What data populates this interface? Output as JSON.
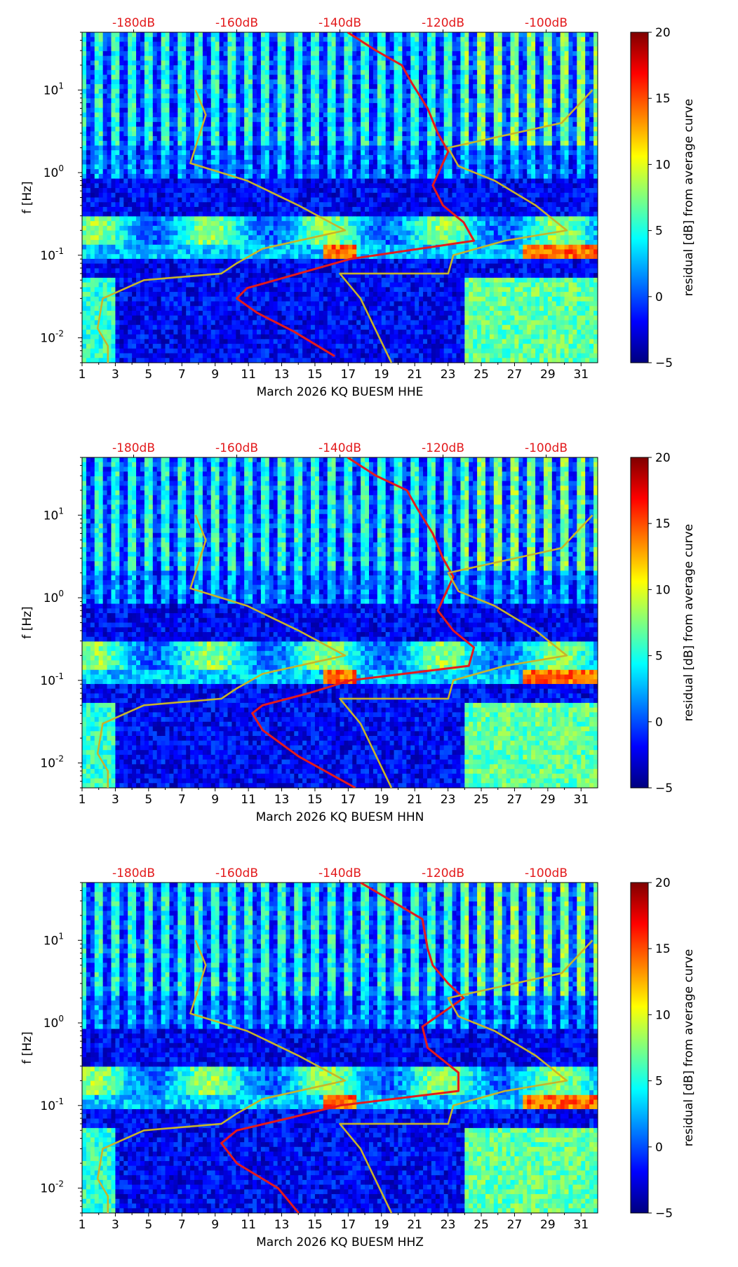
{
  "colors": {
    "colormap": [
      "#00007f",
      "#0000ff",
      "#007fff",
      "#00ffff",
      "#7fff7f",
      "#ffff00",
      "#ff7f00",
      "#ff0000",
      "#7f0000"
    ],
    "red_curve": "#e41a1c",
    "model_curves": "#c8b42a",
    "db_labels": "#e31a1c",
    "axis_text": "#000000"
  },
  "chart_data": [
    {
      "type": "heatmap",
      "title": "",
      "xlabel": "March 2026 KQ BUESM  HHE",
      "ylabel": "f [Hz]",
      "x_ticks": [
        "1",
        "3",
        "5",
        "7",
        "9",
        "11",
        "13",
        "15",
        "17",
        "19",
        "21",
        "23",
        "25",
        "27",
        "29",
        "31"
      ],
      "x_range": [
        1,
        32
      ],
      "y_scale": "log",
      "y_range_hz": [
        0.005,
        50
      ],
      "y_tick_values": [
        0.01,
        0.1,
        1,
        10
      ],
      "top_axis_labels": [
        "-180dB",
        "-160dB",
        "-140dB",
        "-120dB",
        "-100dB"
      ],
      "top_axis_db": [
        -180,
        -160,
        -140,
        -120,
        -100
      ],
      "top_axis_range_db": [
        -190,
        -90
      ],
      "colorbar": {
        "label": "residual [dB] from average curve",
        "ticks": [
          "−5",
          "0",
          "5",
          "10",
          "15",
          "20"
        ],
        "range": [
          -5,
          20
        ]
      },
      "series": [
        {
          "kind": "average_psd",
          "color": "red",
          "points": [
            [
              -138.5,
              50
            ],
            [
              -133,
              30
            ],
            [
              -128,
              20
            ],
            [
              -126,
              12
            ],
            [
              -123,
              6
            ],
            [
              -121,
              3
            ],
            [
              -119,
              1.8
            ],
            [
              -122,
              0.7
            ],
            [
              -120,
              0.4
            ],
            [
              -116,
              0.25
            ],
            [
              -114,
              0.15
            ],
            [
              -138,
              0.09
            ],
            [
              -148,
              0.06
            ],
            [
              -158,
              0.04
            ],
            [
              -160,
              0.03
            ],
            [
              -156,
              0.02
            ],
            [
              -149,
              0.012
            ],
            [
              -141,
              0.006
            ]
          ]
        },
        {
          "kind": "noise_model_low",
          "color": "olive",
          "points": [
            [
              -168,
              10
            ],
            [
              -166,
              5
            ],
            [
              -169,
              1.3
            ],
            [
              -158,
              0.8
            ],
            [
              -148,
              0.4
            ],
            [
              -139,
              0.2
            ],
            [
              -155,
              0.12
            ],
            [
              -160,
              0.08
            ],
            [
              -163,
              0.06
            ],
            [
              -178,
              0.05
            ],
            [
              -186,
              0.03
            ],
            [
              -187,
              0.013
            ],
            [
              -185,
              0.008
            ],
            [
              -185,
              0.005
            ]
          ]
        },
        {
          "kind": "noise_model_high",
          "color": "olive",
          "points": [
            [
              -91,
              10
            ],
            [
              -97,
              4
            ],
            [
              -119,
              2
            ],
            [
              -117,
              1.2
            ],
            [
              -110,
              0.8
            ],
            [
              -102,
              0.4
            ],
            [
              -96,
              0.2
            ],
            [
              -108,
              0.15
            ],
            [
              -118,
              0.1
            ],
            [
              -119,
              0.06
            ],
            [
              -140,
              0.06
            ],
            [
              -136,
              0.03
            ],
            [
              -130,
              0.005
            ]
          ]
        }
      ]
    },
    {
      "type": "heatmap",
      "title": "",
      "xlabel": "March 2026 KQ BUESM  HHN",
      "ylabel": "f [Hz]",
      "x_ticks": [
        "1",
        "3",
        "5",
        "7",
        "9",
        "11",
        "13",
        "15",
        "17",
        "19",
        "21",
        "23",
        "25",
        "27",
        "29",
        "31"
      ],
      "x_range": [
        1,
        32
      ],
      "y_scale": "log",
      "y_range_hz": [
        0.005,
        50
      ],
      "y_tick_values": [
        0.01,
        0.1,
        1,
        10
      ],
      "top_axis_labels": [
        "-180dB",
        "-160dB",
        "-140dB",
        "-120dB",
        "-100dB"
      ],
      "top_axis_db": [
        -180,
        -160,
        -140,
        -120,
        -100
      ],
      "top_axis_range_db": [
        -190,
        -90
      ],
      "colorbar": {
        "label": "residual [dB] from average curve",
        "ticks": [
          "−5",
          "0",
          "5",
          "10",
          "15",
          "20"
        ],
        "range": [
          -5,
          20
        ]
      },
      "series": [
        {
          "kind": "average_psd",
          "color": "red",
          "points": [
            [
              -138.5,
              50
            ],
            [
              -133,
              30
            ],
            [
              -127,
              20
            ],
            [
              -125,
              12
            ],
            [
              -122,
              6
            ],
            [
              -120,
              3
            ],
            [
              -118,
              1.8
            ],
            [
              -121,
              0.7
            ],
            [
              -118,
              0.4
            ],
            [
              -114,
              0.25
            ],
            [
              -115,
              0.15
            ],
            [
              -138,
              0.1
            ],
            [
              -146,
              0.07
            ],
            [
              -155,
              0.05
            ],
            [
              -157,
              0.04
            ],
            [
              -155,
              0.025
            ],
            [
              -148,
              0.012
            ],
            [
              -137,
              0.005
            ]
          ]
        },
        {
          "kind": "noise_model_low",
          "color": "olive",
          "points": [
            [
              -168,
              10
            ],
            [
              -166,
              5
            ],
            [
              -169,
              1.3
            ],
            [
              -158,
              0.8
            ],
            [
              -148,
              0.4
            ],
            [
              -139,
              0.2
            ],
            [
              -155,
              0.12
            ],
            [
              -160,
              0.08
            ],
            [
              -163,
              0.06
            ],
            [
              -178,
              0.05
            ],
            [
              -186,
              0.03
            ],
            [
              -187,
              0.013
            ],
            [
              -185,
              0.008
            ],
            [
              -185,
              0.005
            ]
          ]
        },
        {
          "kind": "noise_model_high",
          "color": "olive",
          "points": [
            [
              -91,
              10
            ],
            [
              -97,
              4
            ],
            [
              -119,
              2
            ],
            [
              -117,
              1.2
            ],
            [
              -110,
              0.8
            ],
            [
              -102,
              0.4
            ],
            [
              -96,
              0.2
            ],
            [
              -108,
              0.15
            ],
            [
              -118,
              0.1
            ],
            [
              -119,
              0.06
            ],
            [
              -140,
              0.06
            ],
            [
              -136,
              0.03
            ],
            [
              -130,
              0.005
            ]
          ]
        }
      ]
    },
    {
      "type": "heatmap",
      "title": "",
      "xlabel": "March 2026 KQ BUESM  HHZ",
      "ylabel": "f [Hz]",
      "x_ticks": [
        "1",
        "3",
        "5",
        "7",
        "9",
        "11",
        "13",
        "15",
        "17",
        "19",
        "21",
        "23",
        "25",
        "27",
        "29",
        "31"
      ],
      "x_range": [
        1,
        32
      ],
      "y_scale": "log",
      "y_range_hz": [
        0.005,
        50
      ],
      "y_tick_values": [
        0.01,
        0.1,
        1,
        10
      ],
      "top_axis_labels": [
        "-180dB",
        "-160dB",
        "-140dB",
        "-120dB",
        "-100dB"
      ],
      "top_axis_db": [
        -180,
        -160,
        -140,
        -120,
        -100
      ],
      "top_axis_range_db": [
        -190,
        -90
      ],
      "colorbar": {
        "label": "residual [dB] from average curve",
        "ticks": [
          "−5",
          "0",
          "5",
          "10",
          "15",
          "20"
        ],
        "range": [
          -5,
          20
        ]
      },
      "series": [
        {
          "kind": "average_psd",
          "color": "red",
          "points": [
            [
              -136,
              50
            ],
            [
              -130,
              30
            ],
            [
              -124,
              18
            ],
            [
              -123,
              8
            ],
            [
              -122,
              5
            ],
            [
              -119,
              3
            ],
            [
              -116,
              2
            ],
            [
              -124,
              0.9
            ],
            [
              -123,
              0.5
            ],
            [
              -117,
              0.25
            ],
            [
              -117,
              0.15
            ],
            [
              -140,
              0.1
            ],
            [
              -150,
              0.07
            ],
            [
              -160,
              0.05
            ],
            [
              -163,
              0.035
            ],
            [
              -160,
              0.02
            ],
            [
              -152,
              0.01
            ],
            [
              -148,
              0.005
            ]
          ]
        },
        {
          "kind": "noise_model_low",
          "color": "olive",
          "points": [
            [
              -168,
              10
            ],
            [
              -166,
              5
            ],
            [
              -169,
              1.3
            ],
            [
              -158,
              0.8
            ],
            [
              -148,
              0.4
            ],
            [
              -139,
              0.2
            ],
            [
              -155,
              0.12
            ],
            [
              -160,
              0.08
            ],
            [
              -163,
              0.06
            ],
            [
              -178,
              0.05
            ],
            [
              -186,
              0.03
            ],
            [
              -187,
              0.013
            ],
            [
              -185,
              0.008
            ],
            [
              -185,
              0.005
            ]
          ]
        },
        {
          "kind": "noise_model_high",
          "color": "olive",
          "points": [
            [
              -91,
              10
            ],
            [
              -97,
              4
            ],
            [
              -119,
              2
            ],
            [
              -117,
              1.2
            ],
            [
              -110,
              0.8
            ],
            [
              -102,
              0.4
            ],
            [
              -96,
              0.2
            ],
            [
              -108,
              0.15
            ],
            [
              -118,
              0.1
            ],
            [
              -119,
              0.06
            ],
            [
              -140,
              0.06
            ],
            [
              -136,
              0.03
            ],
            [
              -130,
              0.005
            ]
          ]
        }
      ]
    }
  ]
}
